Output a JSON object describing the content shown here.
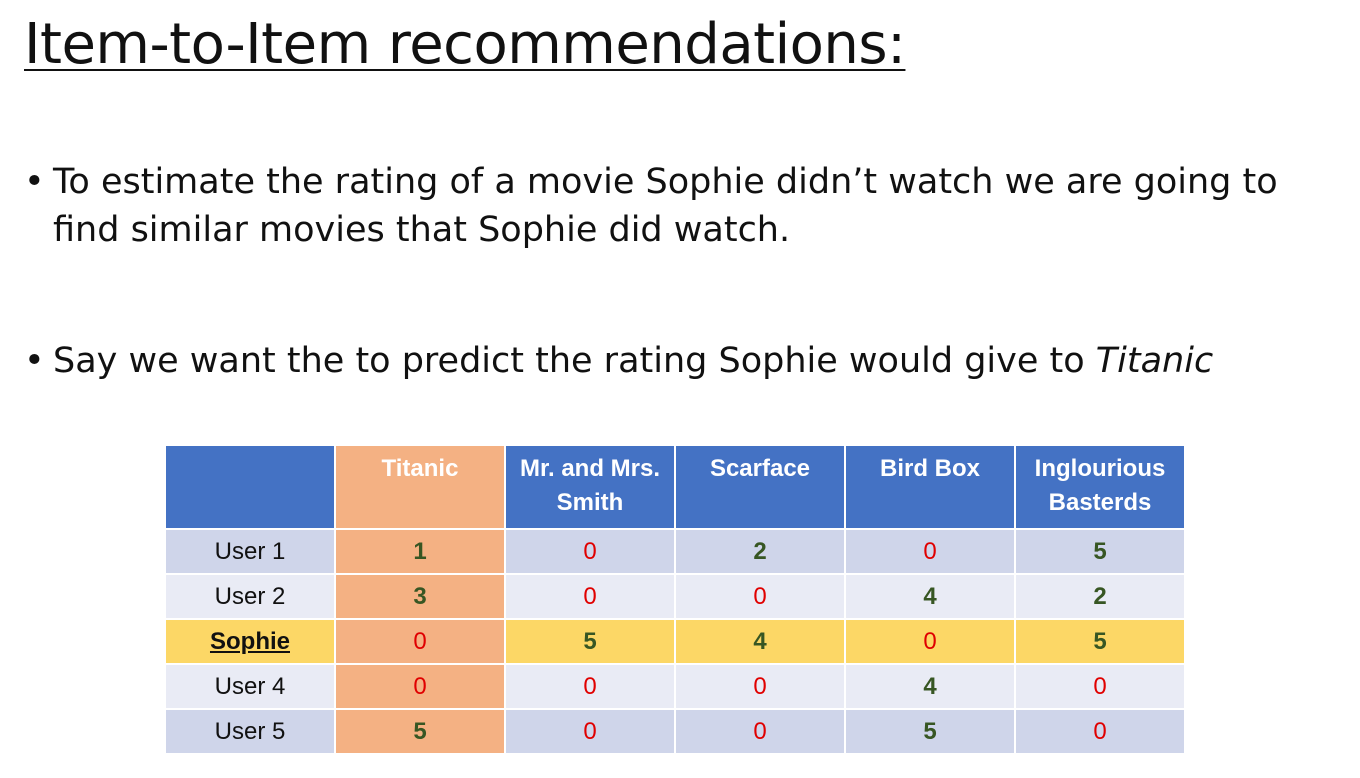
{
  "slide": {
    "title": "Item-to-Item recommendations:",
    "bullets": [
      {
        "marker": "•",
        "text": "To estimate the rating of a movie Sophie didn’t watch we are going to find similar movies that Sophie did watch."
      },
      {
        "marker": "•",
        "text_before": "Say we want the to predict the rating Sophie would give to ",
        "text_italic": "Titanic"
      }
    ]
  },
  "table": {
    "corner": "",
    "columns": [
      "Titanic",
      "Mr. and Mrs. Smith",
      "Scarface",
      "Bird Box",
      "Inglourious Basterds"
    ],
    "rows": [
      {
        "label": "User 1",
        "values": [
          "1",
          "0",
          "2",
          "0",
          "5"
        ]
      },
      {
        "label": "User 2",
        "values": [
          "3",
          "0",
          "0",
          "4",
          "2"
        ]
      },
      {
        "label": "Sophie",
        "values": [
          "0",
          "5",
          "4",
          "0",
          "5"
        ]
      },
      {
        "label": "User 4",
        "values": [
          "0",
          "0",
          "0",
          "4",
          "0"
        ]
      },
      {
        "label": "User 5",
        "values": [
          "5",
          "0",
          "0",
          "5",
          "0"
        ]
      }
    ]
  },
  "colors": {
    "header_blue": "#4472c4",
    "titanic_orange": "#f4b183",
    "sophie_yellow": "#fcd766",
    "zero_red": "#e00000",
    "positive_green": "#375623"
  }
}
